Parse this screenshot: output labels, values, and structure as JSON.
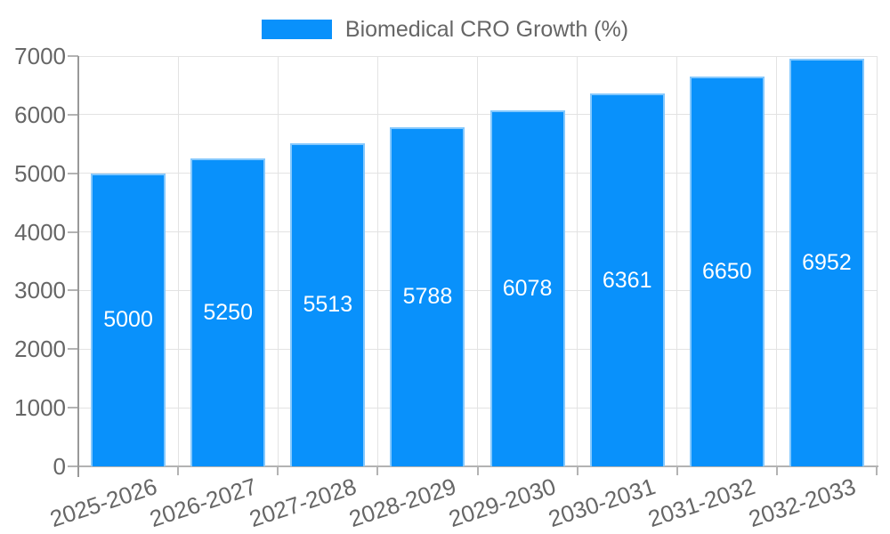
{
  "legend": {
    "label": "Biomedical CRO Growth (%)",
    "swatch_color": "#0991fb"
  },
  "chart_data": {
    "type": "bar",
    "title": "Biomedical CRO Growth (%)",
    "categories": [
      "2025-2026",
      "2026-2027",
      "2027-2028",
      "2028-2029",
      "2029-2030",
      "2030-2031",
      "2031-2032",
      "2032-2033"
    ],
    "values": [
      5000,
      5250,
      5513,
      5788,
      6078,
      6361,
      6650,
      6952
    ],
    "xlabel": "",
    "ylabel": "",
    "ylim": [
      0,
      7000
    ],
    "yticks": [
      0,
      1000,
      2000,
      3000,
      4000,
      5000,
      6000,
      7000
    ],
    "grid": true,
    "legend_position": "top-center",
    "bar_color": "#0991fb",
    "bar_label_color": "#ffffff",
    "axis_text_color": "#666666",
    "data_labels": [
      "5000",
      "5250",
      "5513",
      "5788",
      "6078",
      "6361",
      "6650",
      "6952"
    ]
  }
}
